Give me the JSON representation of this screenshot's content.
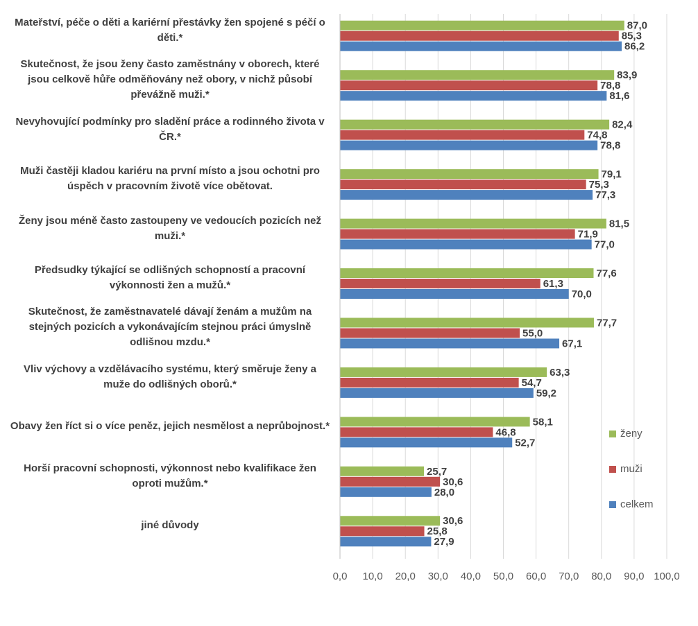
{
  "chart_data": {
    "type": "bar",
    "orientation": "horizontal",
    "categories": [
      "Mateřství, péče o děti a kariérní přestávky žen spojené s péčí o děti.*",
      "Skutečnost, že jsou ženy často zaměstnány v oborech, které jsou celkově hůře odměňovány než obory, v nichž působí převážně muži.*",
      "Nevyhovující podmínky pro sladění práce a rodinného života v ČR.*",
      "Muži častěji kladou kariéru na první místo a jsou ochotni pro úspěch v pracovním životě více obětovat.",
      "Ženy jsou méně často zastoupeny ve vedoucích pozicích než muži.*",
      "Předsudky týkající se odlišných schopností a pracovní výkonnosti žen a mužů.*",
      "Skutečnost, že zaměstnavatelé dávají ženám a mužům na stejných pozicích a vykonávajícím stejnou práci úmyslně odlišnou mzdu.*",
      "Vliv výchovy a vzdělávacího systému, který směruje ženy a muže do odlišných oborů.*",
      "Obavy žen říct si o více peněz, jejich nesmělost a neprůbojnost.*",
      "Horší pracovní schopnosti, výkonnost nebo kvalifikace žen oproti mužům.*",
      "jiné důvody"
    ],
    "series": [
      {
        "name": "ženy",
        "color": "#9bbb59",
        "values": [
          87.0,
          83.9,
          82.4,
          79.1,
          81.5,
          77.6,
          77.7,
          63.3,
          58.1,
          25.7,
          30.6
        ],
        "value_labels": [
          "87,0",
          "83,9",
          "82,4",
          "79,1",
          "81,5",
          "77,6",
          "77,7",
          "63,3",
          "58,1",
          "25,7",
          "30,6"
        ]
      },
      {
        "name": "muži",
        "color": "#c0504d",
        "values": [
          85.3,
          78.8,
          74.8,
          75.3,
          71.9,
          61.3,
          55.0,
          54.7,
          46.8,
          30.6,
          25.8
        ],
        "value_labels": [
          "85,3",
          "78,8",
          "74,8",
          "75,3",
          "71,9",
          "61,3",
          "55,0",
          "54,7",
          "46,8",
          "30,6",
          "25,8"
        ]
      },
      {
        "name": "celkem",
        "color": "#4f81bd",
        "values": [
          86.2,
          81.6,
          78.8,
          77.3,
          77.0,
          70.0,
          67.1,
          59.2,
          52.7,
          28.0,
          27.9
        ],
        "value_labels": [
          "86,2",
          "81,6",
          "78,8",
          "77,3",
          "77,0",
          "70,0",
          "67,1",
          "59,2",
          "52,7",
          "28,0",
          "27,9"
        ]
      }
    ],
    "xlim": [
      0,
      100
    ],
    "xticks": [
      {
        "value": 0,
        "label": "0,0"
      },
      {
        "value": 10,
        "label": "10,0"
      },
      {
        "value": 20,
        "label": "20,0"
      },
      {
        "value": 30,
        "label": "30,0"
      },
      {
        "value": 40,
        "label": "40,0"
      },
      {
        "value": 50,
        "label": "50,0"
      },
      {
        "value": 60,
        "label": "60,0"
      },
      {
        "value": 70,
        "label": "70,0"
      },
      {
        "value": 80,
        "label": "80,0"
      },
      {
        "value": 90,
        "label": "90,0"
      },
      {
        "value": 100,
        "label": "100,0"
      }
    ],
    "grid": true
  }
}
